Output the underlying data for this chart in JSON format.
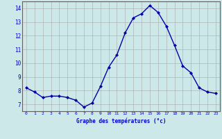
{
  "hours": [
    0,
    1,
    2,
    3,
    4,
    5,
    6,
    7,
    8,
    9,
    10,
    11,
    12,
    13,
    14,
    15,
    16,
    17,
    18,
    19,
    20,
    21,
    22,
    23
  ],
  "temps": [
    8.2,
    7.9,
    7.5,
    7.6,
    7.6,
    7.5,
    7.3,
    6.8,
    7.1,
    8.3,
    9.7,
    10.6,
    12.2,
    13.3,
    13.6,
    14.2,
    13.7,
    12.7,
    11.3,
    9.8,
    9.3,
    8.2,
    7.9,
    7.8
  ],
  "line_color": "#0000aa",
  "marker": "D",
  "marker_size": 2.0,
  "bg_color": "#cce8e8",
  "grid_color": "#aaaaaa",
  "xlabel": "Graphe des températures (°c)",
  "xlabel_color": "#0000cc",
  "tick_color": "#0000cc",
  "ylim": [
    6.5,
    14.5
  ],
  "yticks": [
    7,
    8,
    9,
    10,
    11,
    12,
    13,
    14
  ],
  "xlim": [
    -0.5,
    23.5
  ],
  "figsize": [
    3.2,
    2.0
  ],
  "dpi": 100
}
